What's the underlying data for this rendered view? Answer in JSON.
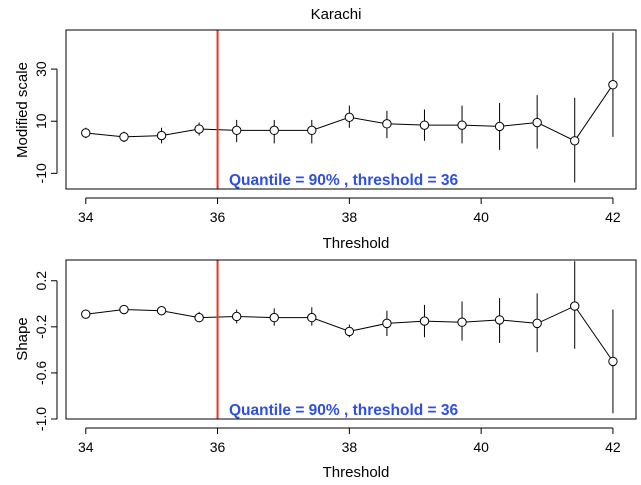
{
  "chart_data": [
    {
      "type": "scatter",
      "title": "Karachi",
      "xlabel": "Threshold",
      "ylabel": "Modified scale",
      "xlim": [
        33.7,
        42.35
      ],
      "ylim": [
        -16,
        45
      ],
      "xticks": [
        34,
        36,
        38,
        40,
        42
      ],
      "yticks": [
        -10,
        10,
        30
      ],
      "x": [
        34,
        34.58,
        35.15,
        35.72,
        36.29,
        36.86,
        37.43,
        38.0,
        38.57,
        39.14,
        39.71,
        40.28,
        40.85,
        41.42,
        42.0
      ],
      "y": [
        5.5,
        4.0,
        4.5,
        7.0,
        6.5,
        6.5,
        6.5,
        11.5,
        9.0,
        8.5,
        8.5,
        8.0,
        9.5,
        2.5,
        24.0
      ],
      "ci_lower": [
        3.5,
        2.0,
        1.5,
        4.5,
        2.0,
        1.5,
        1.5,
        7.5,
        3.5,
        2.5,
        1.5,
        -1.0,
        -0.5,
        -13.5,
        4.0
      ],
      "ci_upper": [
        7.5,
        6.0,
        7.5,
        9.5,
        10.5,
        10.5,
        10.5,
        16.0,
        14.0,
        14.5,
        16.0,
        17.0,
        20.0,
        19.0,
        44.0
      ],
      "vline": {
        "x": 36,
        "color": "#ea3323"
      },
      "annotation": "Quantile = 90% ,  threshold = 36",
      "annotation_color": "#2e4fe0",
      "grid": false
    },
    {
      "type": "scatter",
      "title": "",
      "xlabel": "Threshold",
      "ylabel": "Shape",
      "xlim": [
        33.7,
        42.35
      ],
      "ylim": [
        -1.0,
        0.38
      ],
      "xticks": [
        34,
        36,
        38,
        40,
        42
      ],
      "yticks": [
        -1.0,
        -0.6,
        -0.2,
        0.2
      ],
      "ytick_labels": [
        "-1.0",
        "-0.6",
        "-0.2",
        "0.2"
      ],
      "x": [
        34,
        34.58,
        35.15,
        35.72,
        36.29,
        36.86,
        37.43,
        38.0,
        38.57,
        39.14,
        39.71,
        40.28,
        40.85,
        41.42,
        42.0
      ],
      "y": [
        -0.09,
        -0.05,
        -0.06,
        -0.12,
        -0.11,
        -0.12,
        -0.12,
        -0.24,
        -0.17,
        -0.15,
        -0.16,
        -0.14,
        -0.17,
        -0.02,
        -0.5
      ],
      "ci_lower": [
        -0.12,
        -0.09,
        -0.1,
        -0.16,
        -0.17,
        -0.19,
        -0.19,
        -0.29,
        -0.28,
        -0.29,
        -0.32,
        -0.34,
        -0.42,
        -0.39,
        -0.95
      ],
      "ci_upper": [
        -0.06,
        -0.02,
        -0.02,
        -0.07,
        -0.05,
        -0.04,
        -0.03,
        -0.18,
        -0.06,
        -0.01,
        0.02,
        0.05,
        0.09,
        0.37,
        -0.05
      ],
      "vline": {
        "x": 36,
        "color": "#ea3323"
      },
      "annotation": "Quantile = 90% ,  threshold = 36",
      "annotation_color": "#2e4fe0",
      "grid": false
    }
  ]
}
